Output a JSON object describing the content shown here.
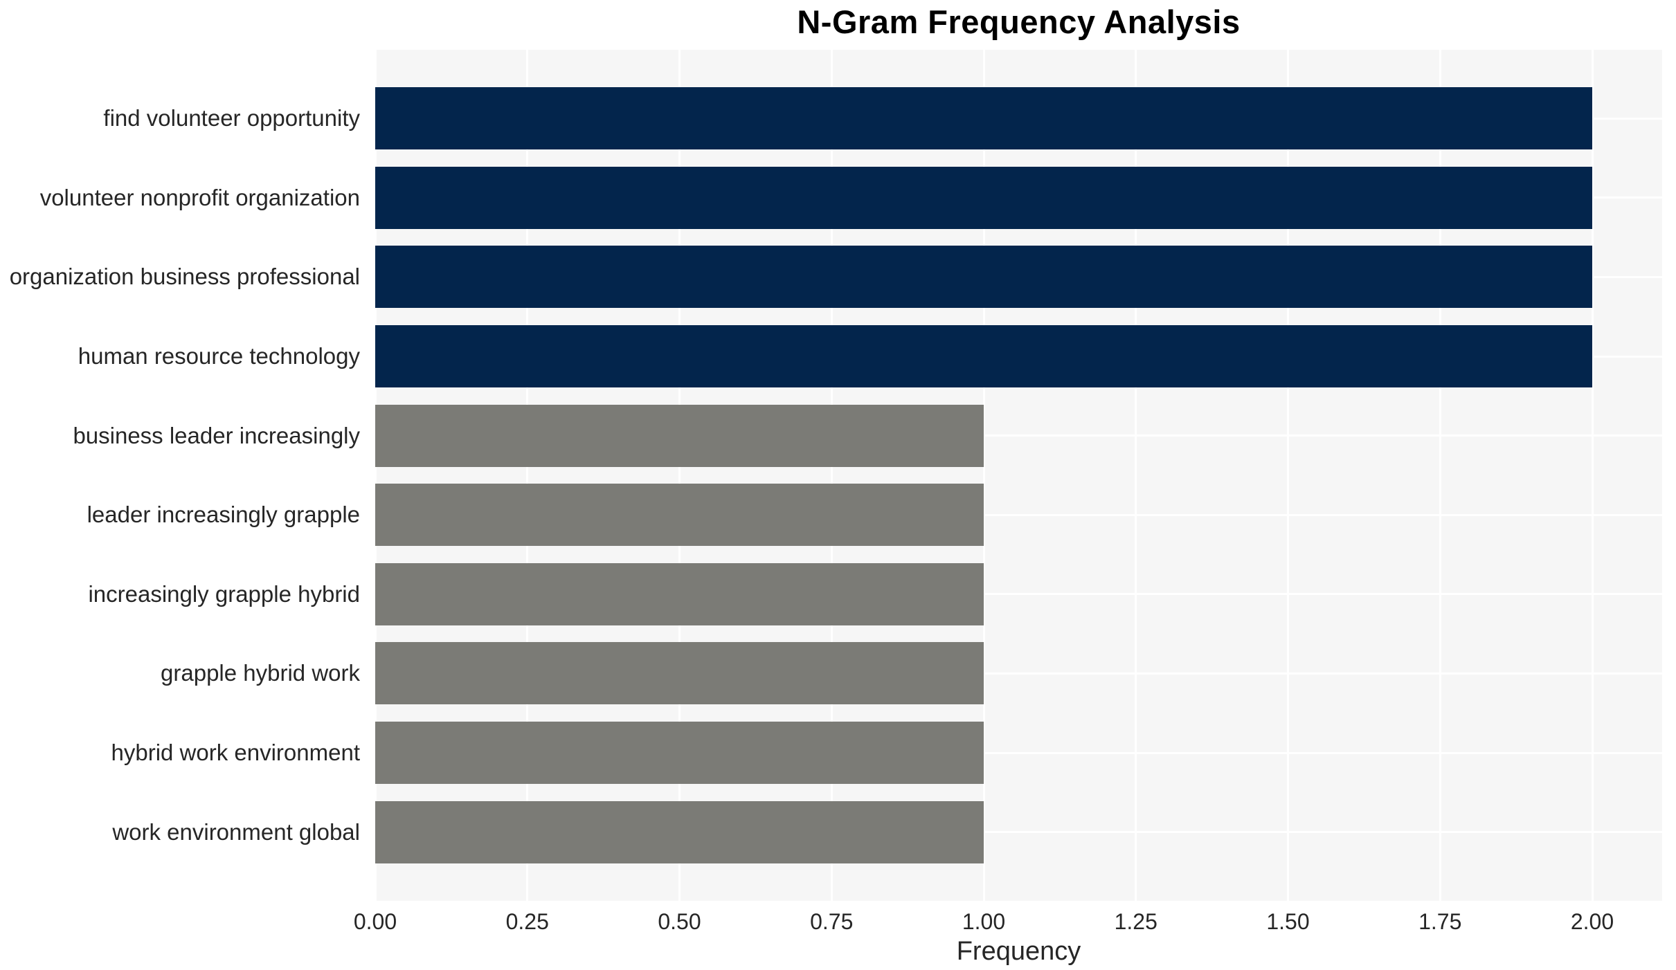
{
  "chart_data": {
    "type": "bar",
    "orientation": "horizontal",
    "title": "N-Gram Frequency Analysis",
    "xlabel": "Frequency",
    "ylabel": "",
    "categories": [
      "find volunteer opportunity",
      "volunteer nonprofit organization",
      "organization business professional",
      "human resource technology",
      "business leader increasingly",
      "leader increasingly grapple",
      "increasingly grapple hybrid",
      "grapple hybrid work",
      "hybrid work environment",
      "work environment global"
    ],
    "values": [
      2.0,
      2.0,
      2.0,
      2.0,
      1.0,
      1.0,
      1.0,
      1.0,
      1.0,
      1.0
    ],
    "bar_colors": [
      "#03254c",
      "#03254c",
      "#03254c",
      "#03254c",
      "#7b7b76",
      "#7b7b76",
      "#7b7b76",
      "#7b7b76",
      "#7b7b76",
      "#7b7b76"
    ],
    "x_tick_labels": [
      "0.00",
      "0.25",
      "0.50",
      "0.75",
      "1.00",
      "1.25",
      "1.50",
      "1.75",
      "2.00"
    ],
    "x_tick_values": [
      0,
      0.25,
      0.5,
      0.75,
      1.0,
      1.25,
      1.5,
      1.75,
      2.0
    ],
    "xlim": [
      0,
      2.115
    ],
    "grid": true,
    "legend": false,
    "colors": {
      "plot_background": "#f6f6f6",
      "grid_line": "#ffffff",
      "navy_bar": "#03254c",
      "gray_bar": "#7b7b76",
      "text": "#262626",
      "title_text": "#000000",
      "figure_background": "#ffffff"
    }
  }
}
